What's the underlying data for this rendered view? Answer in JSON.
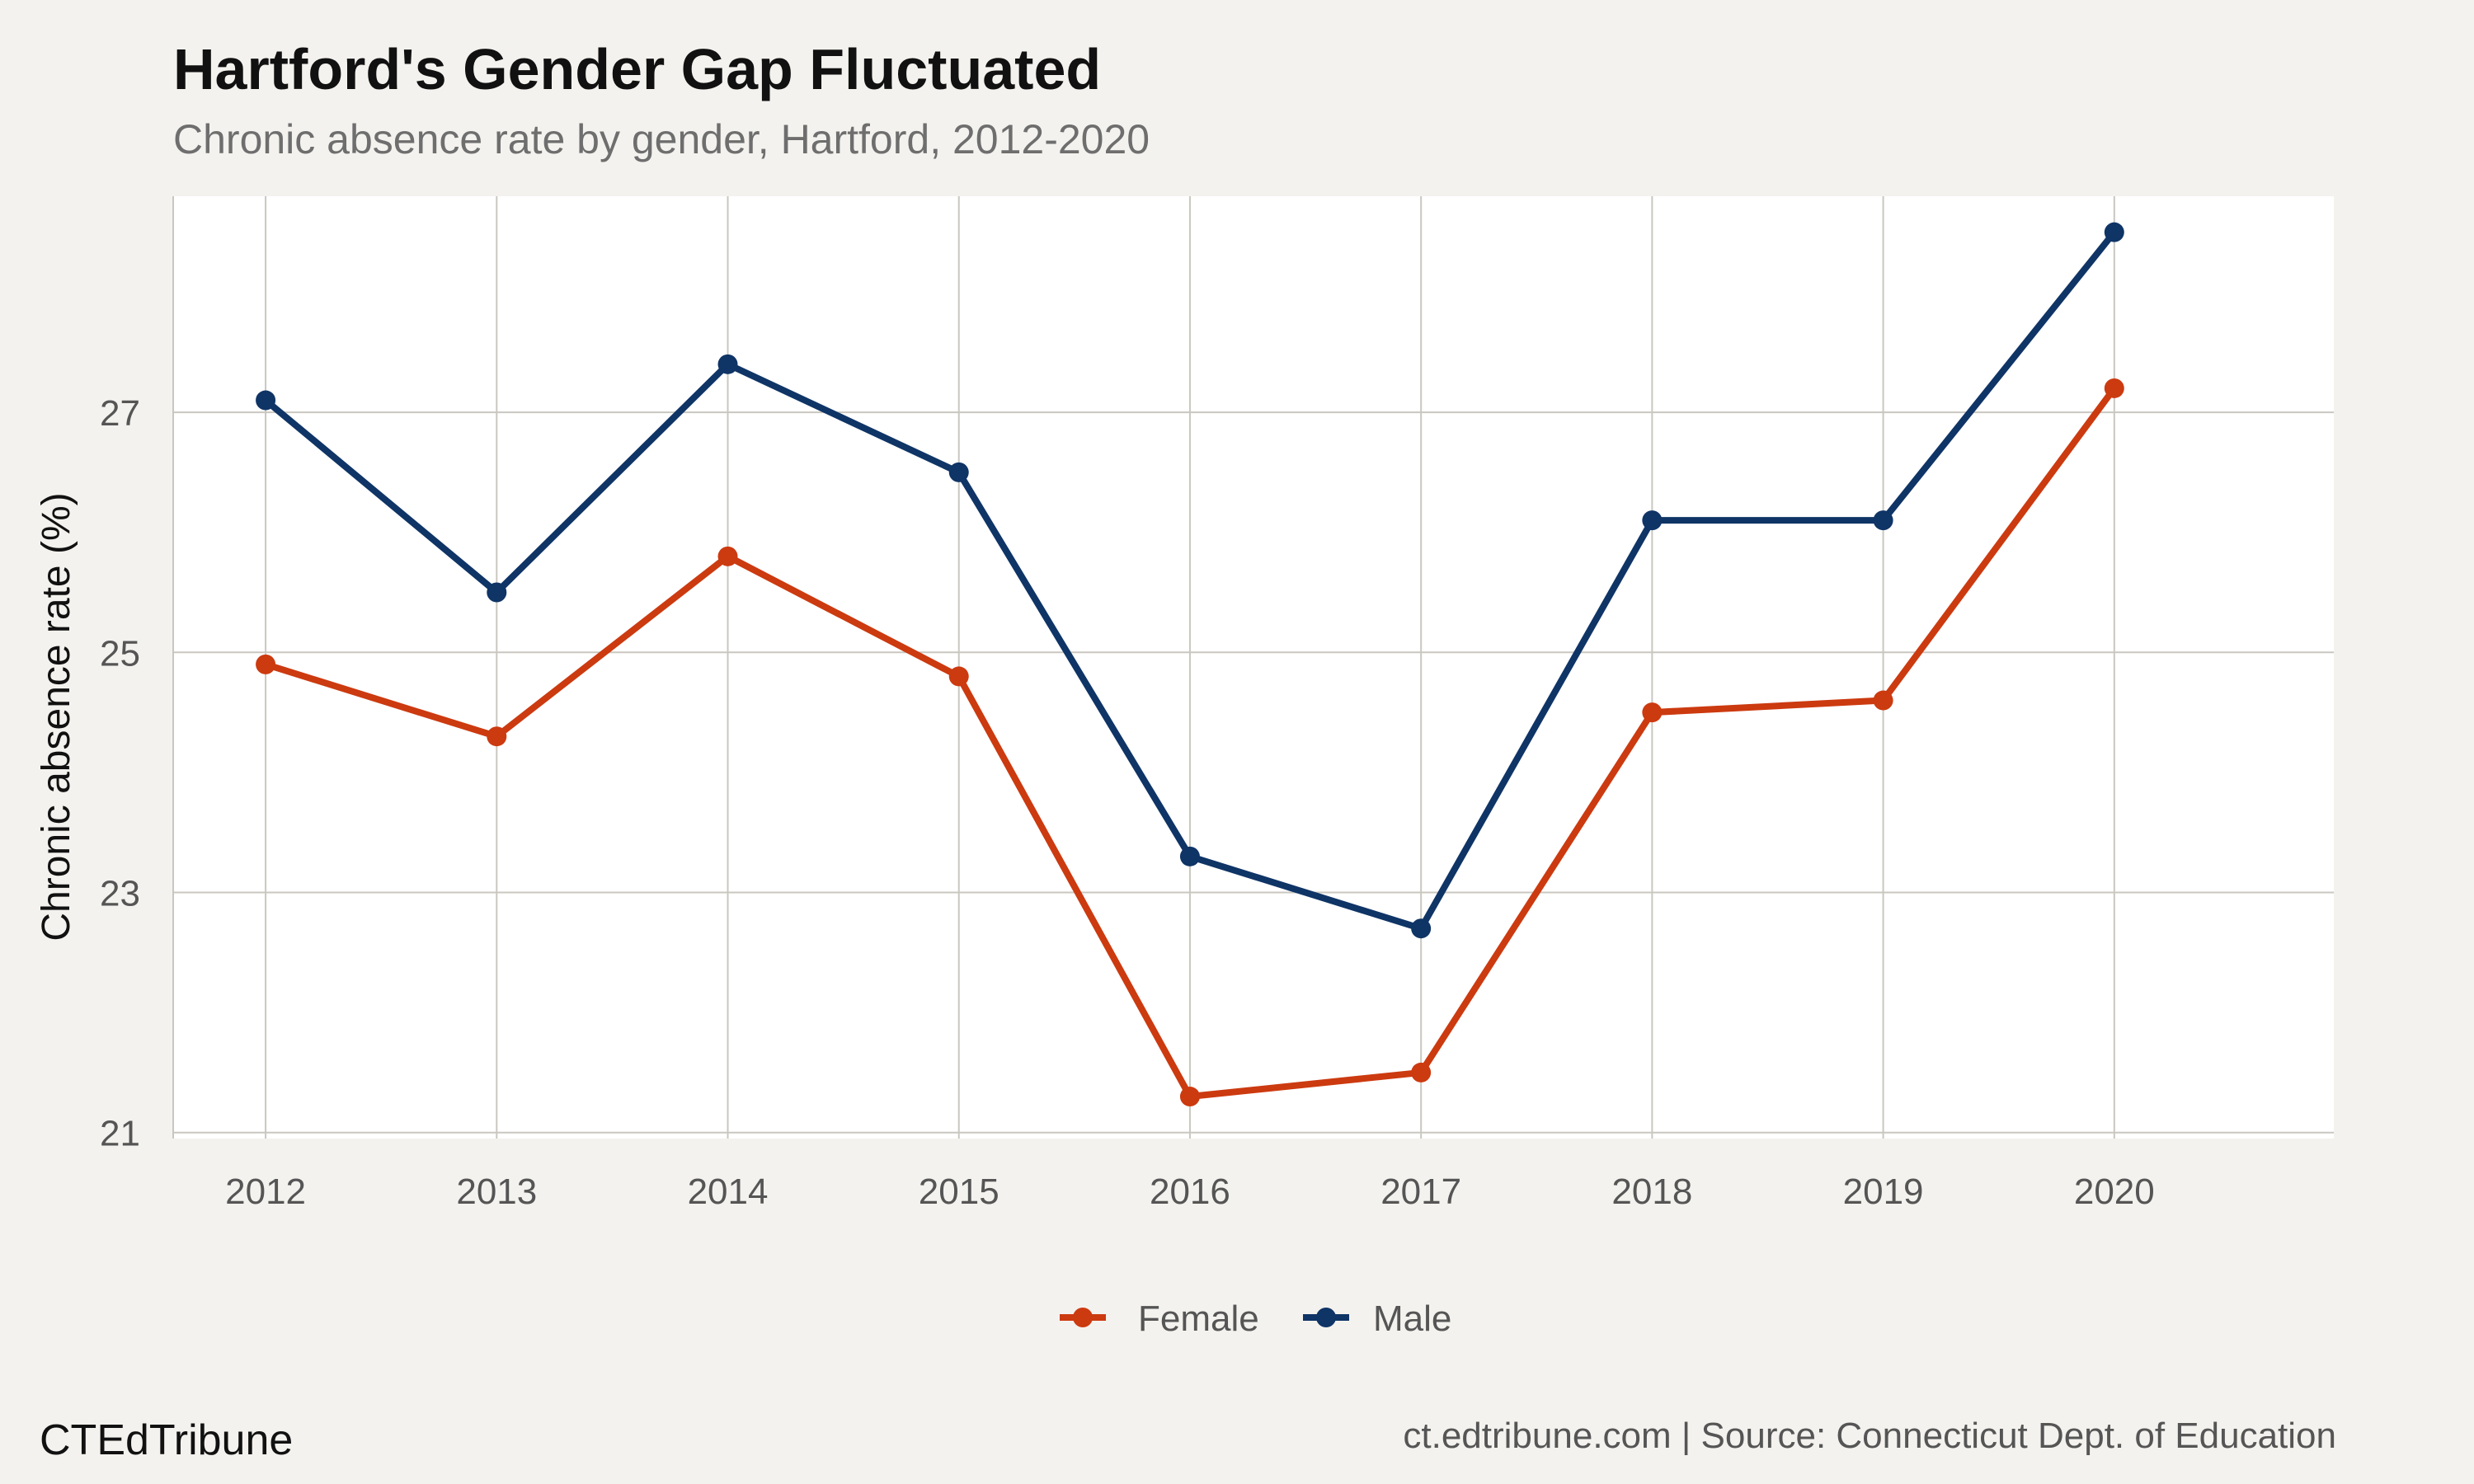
{
  "header": {
    "title": "Hartford's Gender Gap Fluctuated",
    "subtitle": "Chronic absence rate by gender, Hartford, 2012-2020"
  },
  "footer": {
    "brand": "CTEdTribune",
    "source": "ct.edtribune.com | Source: Connecticut Dept. of Education"
  },
  "colors": {
    "female": "#cc3a10",
    "male": "#0f3466",
    "grid": "#c9c7bf",
    "panel": "#ffffff",
    "tick_text": "#555555"
  },
  "chart_data": {
    "type": "line",
    "title": "Hartford's Gender Gap Fluctuated",
    "subtitle": "Chronic absence rate by gender, Hartford, 2012-2020",
    "xlabel": "",
    "ylabel": "Chronic absence rate (%)",
    "x": [
      2012,
      2013,
      2014,
      2015,
      2016,
      2017,
      2018,
      2019,
      2020
    ],
    "x_ticks": [
      "2012",
      "2013",
      "2014",
      "2015",
      "2016",
      "2017",
      "2018",
      "2019",
      "2020"
    ],
    "y_ticks": [
      "21",
      "23",
      "25",
      "27"
    ],
    "xlim": [
      2011.6,
      2020.95
    ],
    "ylim": [
      20.95,
      28.8
    ],
    "grid": true,
    "legend_position": "bottom",
    "series": [
      {
        "name": "Female",
        "values": [
          24.9,
          24.3,
          25.8,
          24.8,
          21.3,
          21.5,
          24.5,
          24.6,
          27.2
        ]
      },
      {
        "name": "Male",
        "values": [
          27.1,
          25.5,
          27.4,
          26.5,
          23.3,
          22.7,
          26.1,
          26.1,
          28.5
        ]
      }
    ]
  }
}
